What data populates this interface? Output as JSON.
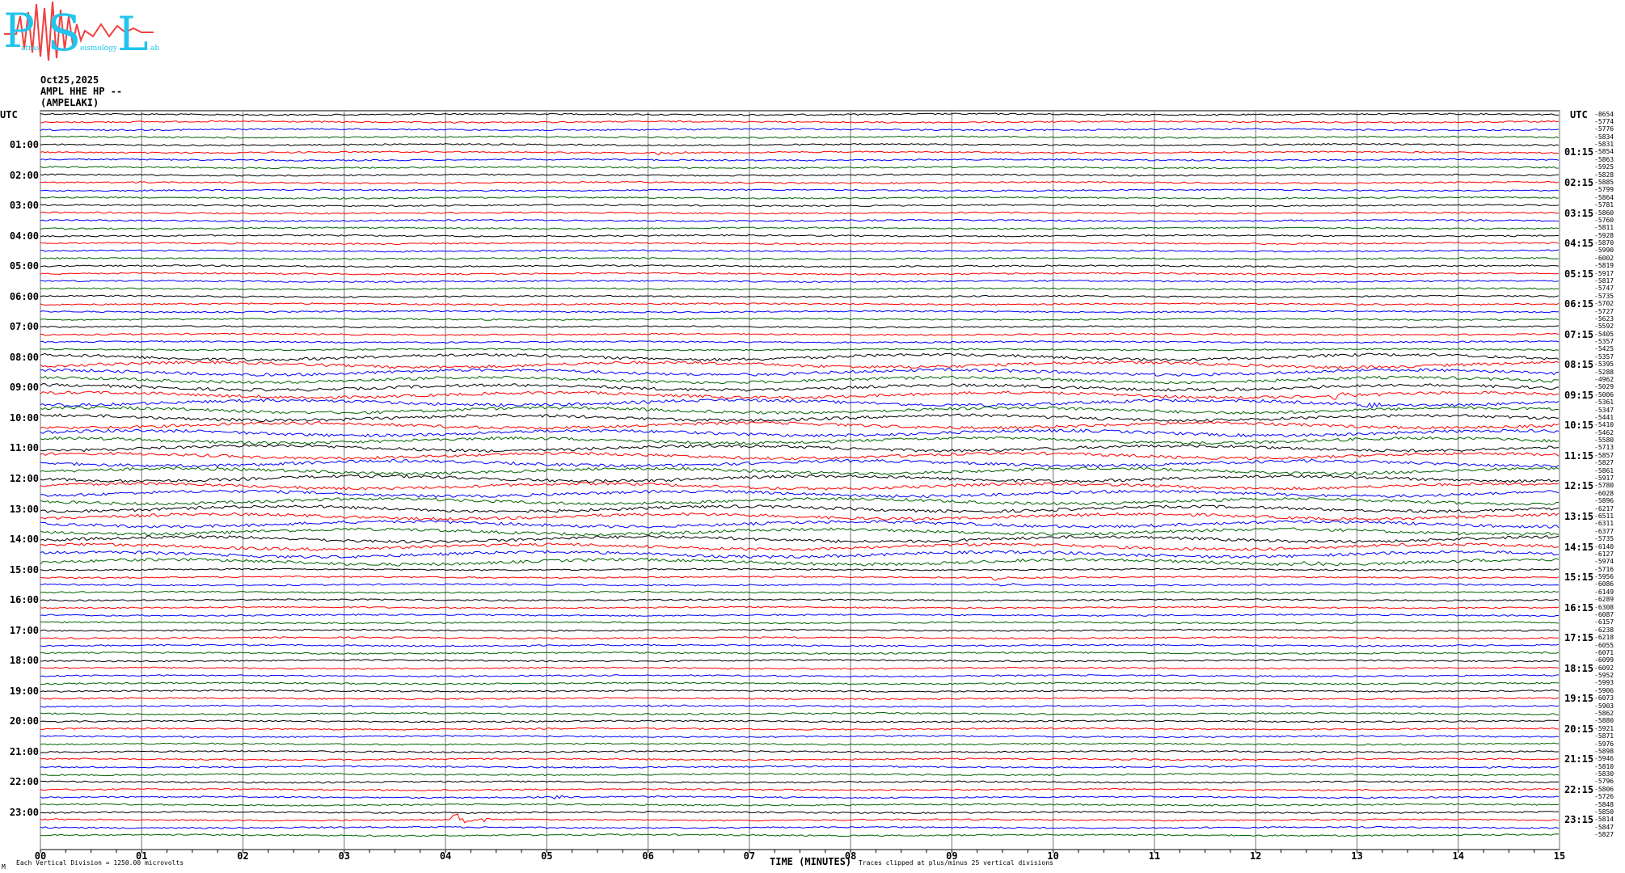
{
  "logo": {
    "big_letters": [
      "P",
      "S",
      "L"
    ],
    "small_text": [
      "atras",
      "eismology",
      "ab"
    ],
    "colors": {
      "letters": "#22c4ee",
      "wave": "#f04040"
    }
  },
  "header": {
    "date": "Oct25,2025",
    "channel": "AMPL HHE HP --",
    "station": "(AMPELAKI)"
  },
  "axis": {
    "left_title": "UTC",
    "right_title": "UTC",
    "left_hours": [
      "01:00",
      "02:00",
      "03:00",
      "04:00",
      "05:00",
      "06:00",
      "07:00",
      "08:00",
      "09:00",
      "10:00",
      "11:00",
      "12:00",
      "13:00",
      "14:00",
      "15:00",
      "16:00",
      "17:00",
      "18:00",
      "19:00",
      "20:00",
      "21:00",
      "22:00",
      "23:00"
    ],
    "right_hours": [
      "01:15",
      "02:15",
      "03:15",
      "04:15",
      "05:15",
      "06:15",
      "07:15",
      "08:15",
      "09:15",
      "10:15",
      "11:15",
      "12:15",
      "13:15",
      "14:15",
      "15:15",
      "16:15",
      "17:15",
      "18:15",
      "19:15",
      "20:15",
      "21:15",
      "22:15",
      "23:15"
    ],
    "minute_ticks": [
      "00",
      "01",
      "02",
      "03",
      "04",
      "05",
      "06",
      "07",
      "08",
      "09",
      "10",
      "11",
      "12",
      "13",
      "14",
      "15"
    ],
    "xlabel": "TIME (MINUTES)"
  },
  "trace_offsets": [
    "-8654",
    "-5774",
    "-5776",
    "-5834",
    "-5831",
    "-5854",
    "-5863",
    "-5925",
    "-5828",
    "-5885",
    "-5799",
    "-5864",
    "-5781",
    "-5860",
    "-5760",
    "-5811",
    "-5928",
    "-5870",
    "-5990",
    "-6002",
    "-5819",
    "-5917",
    "-5817",
    "-5747",
    "-5735",
    "-5702",
    "-5727",
    "-5623",
    "-5592",
    "-5405",
    "-5357",
    "-5425",
    "-5357",
    "-5395",
    "-5288",
    "-4962",
    "-5029",
    "-5006",
    "-5361",
    "-5347",
    "-5441",
    "-5410",
    "-5462",
    "-5580",
    "-5713",
    "-5857",
    "-5827",
    "-5861",
    "-5917",
    "-5780",
    "-6028",
    "-5896",
    "-6217",
    "-6511",
    "-6311",
    "-6377",
    "-5735",
    "-6140",
    "-6127",
    "-5974",
    "-5716",
    "-5956",
    "-6086",
    "-6149",
    "-6289",
    "-6308",
    "-6087",
    "-6157",
    "-6238",
    "-6218",
    "-6055",
    "-6071",
    "-6099",
    "-6092",
    "-5952",
    "-5993",
    "-5906",
    "-6073",
    "-5903",
    "-5862",
    "-5880",
    "-5921",
    "-5871",
    "-5976",
    "-5898",
    "-5946",
    "-5810",
    "-5830",
    "-5796",
    "-5806",
    "-5726",
    "-5848",
    "-5850",
    "-5814",
    "-5847",
    "-5827"
  ],
  "trace_colors": [
    "#000000",
    "#ff0000",
    "#0000ff",
    "#006400"
  ],
  "footer": {
    "corner_mark": "M",
    "scale_note": "Each Vertical Division = 1250.00 microvolts",
    "clip_note": "Traces clipped at plus/minus 25 vertical divisions"
  }
}
